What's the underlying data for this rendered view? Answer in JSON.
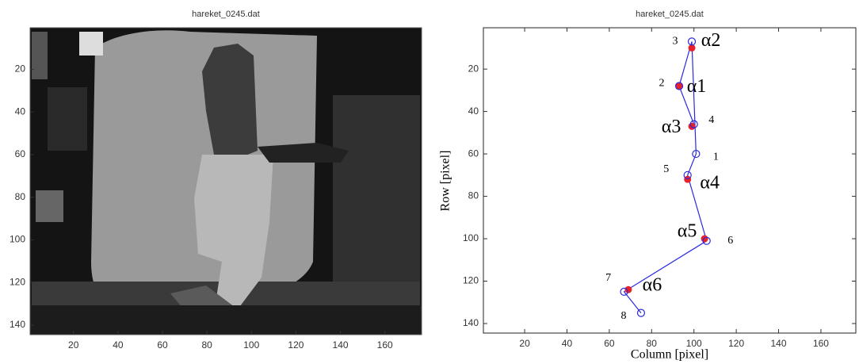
{
  "chart_data": [
    {
      "type": "image",
      "title": "hareket_0245.dat",
      "xlim": [
        0.5,
        176.5
      ],
      "ylim": [
        0.5,
        144.5
      ],
      "xticks": [
        20,
        40,
        60,
        80,
        100,
        120,
        140,
        160
      ],
      "yticks": [
        20,
        40,
        60,
        80,
        100,
        120,
        140
      ]
    },
    {
      "type": "line",
      "title": "hareket_0245.dat",
      "x_label": "Column [pixel]",
      "y_label": "Row [pixel]",
      "xlim": [
        0.5,
        176.5
      ],
      "ylim": [
        0.5,
        144.5
      ],
      "xticks": [
        20,
        40,
        60,
        80,
        100,
        120,
        140,
        160
      ],
      "yticks": [
        20,
        40,
        60,
        80,
        100,
        120,
        140
      ],
      "series": [
        {
          "color": "#2a2ae0",
          "x": [
            93,
            99,
            101,
            97,
            106,
            67,
            75
          ],
          "y": [
            28,
            7,
            60,
            70,
            101,
            125,
            135
          ]
        },
        {
          "color": "#2a2ae0",
          "x": [
            93,
            100
          ],
          "y": [
            28,
            46
          ]
        }
      ],
      "points": {
        "color": "#2a2ae0",
        "labels": [
          "1",
          "2",
          "3",
          "4",
          "5",
          "6",
          "7",
          "8"
        ],
        "x": [
          101,
          93,
          99,
          100,
          97,
          106,
          67,
          75
        ],
        "y": [
          60,
          28,
          7,
          46,
          70,
          101,
          125,
          135
        ]
      },
      "angles": {
        "color": "#e8202a",
        "labels": [
          "α1",
          "α2",
          "α3",
          "α4",
          "α5",
          "α6"
        ],
        "x": [
          93,
          99,
          99,
          97,
          105,
          69
        ],
        "y": [
          28,
          10,
          47,
          72,
          100,
          124
        ]
      }
    }
  ]
}
